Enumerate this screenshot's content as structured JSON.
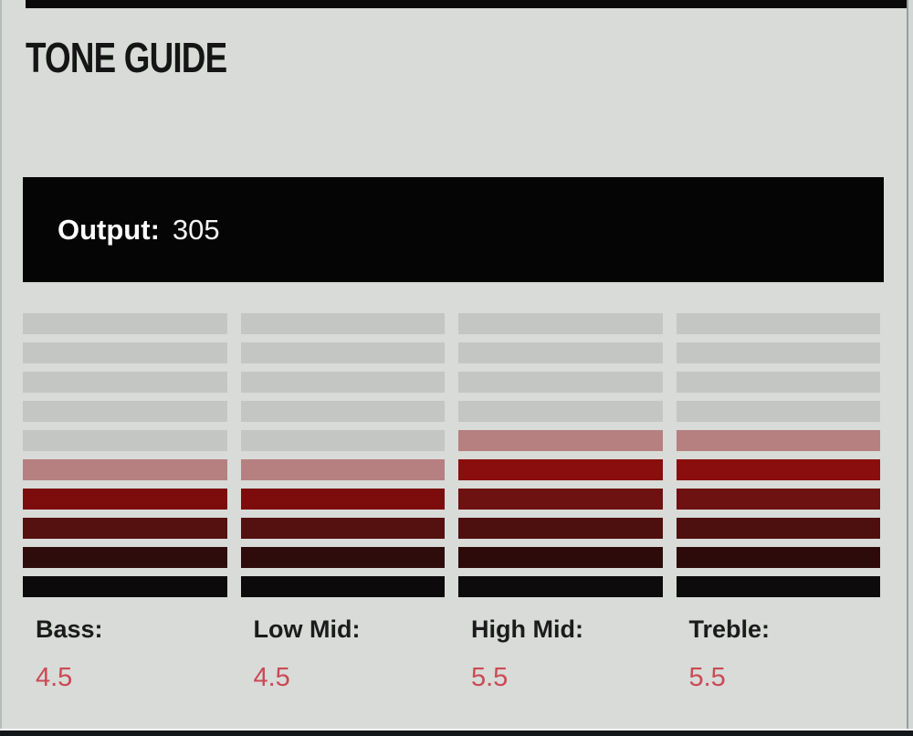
{
  "page": {
    "title": "TONE GUIDE",
    "background_color": "#d8dbd8",
    "top_bar_color": "#0a0a0a",
    "bottom_bar_color": "#14171a"
  },
  "output": {
    "label": "Output:",
    "value": "305",
    "background_color": "#050505",
    "text_color": "#ffffff"
  },
  "chart_data": {
    "type": "bar",
    "subtype": "segmented-led-meter",
    "title": "TONE GUIDE",
    "segments_per_column": 10,
    "scale_max": 10,
    "off_segment_color": "#c3c6c3",
    "value_text_color": "#cb4a54",
    "label_text_color": "#1b1b1b",
    "categories": [
      "Bass",
      "Low Mid",
      "High Mid",
      "Treble"
    ],
    "values": [
      4.5,
      4.5,
      5.5,
      5.5
    ],
    "columns": [
      {
        "label": "Bass:",
        "value": "4.5",
        "lit_segments": 5,
        "segment_colors_top_to_bottom": [
          "#c3c6c3",
          "#c3c6c3",
          "#c3c6c3",
          "#c3c6c3",
          "#c3c6c3",
          "#b68080",
          "#7d0d0d",
          "#551010",
          "#2f0c0c",
          "#0c0a0a"
        ]
      },
      {
        "label": "Low Mid:",
        "value": "4.5",
        "lit_segments": 5,
        "segment_colors_top_to_bottom": [
          "#c3c6c3",
          "#c3c6c3",
          "#c3c6c3",
          "#c3c6c3",
          "#c3c6c3",
          "#b68080",
          "#7d0d0d",
          "#551010",
          "#2f0c0c",
          "#0c0a0a"
        ]
      },
      {
        "label": "High Mid:",
        "value": "5.5",
        "lit_segments": 6,
        "segment_colors_top_to_bottom": [
          "#c3c6c3",
          "#c3c6c3",
          "#c3c6c3",
          "#c3c6c3",
          "#b68080",
          "#8b0e0e",
          "#6d1111",
          "#4e0f0f",
          "#2e0b0b",
          "#0d0b0b"
        ]
      },
      {
        "label": "Treble:",
        "value": "5.5",
        "lit_segments": 6,
        "segment_colors_top_to_bottom": [
          "#c3c6c3",
          "#c3c6c3",
          "#c3c6c3",
          "#c3c6c3",
          "#b68080",
          "#8b0e0e",
          "#6d1111",
          "#4e0f0f",
          "#2e0b0b",
          "#0d0b0b"
        ]
      }
    ]
  }
}
